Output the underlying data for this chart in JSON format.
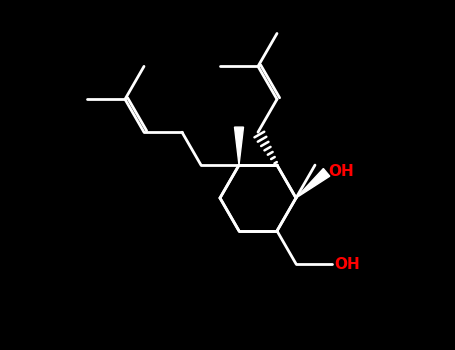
{
  "background": "#000000",
  "bond_color": "#ffffff",
  "oh_color": "#ff0000",
  "lw": 2.0,
  "fig_w": 4.55,
  "fig_h": 3.5,
  "dpi": 100,
  "bl": 38
}
